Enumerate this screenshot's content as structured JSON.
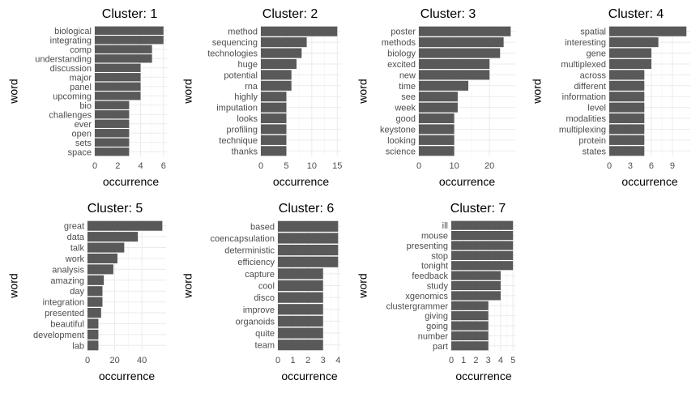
{
  "chart_data": [
    {
      "type": "bar",
      "orientation": "horizontal",
      "title": "Cluster: 1",
      "xlabel": "occurrence",
      "ylabel": "word",
      "categories": [
        "biological",
        "integrating",
        "comp",
        "understanding",
        "discussion",
        "major",
        "panel",
        "upcoming",
        "bio",
        "challenges",
        "ever",
        "open",
        "sets",
        "space"
      ],
      "values": [
        6,
        6,
        5,
        5,
        4,
        4,
        4,
        4,
        3,
        3,
        3,
        3,
        3,
        3
      ],
      "xlim": [
        0,
        6.3
      ],
      "xticks": [
        0,
        2,
        4,
        6
      ],
      "grid": true
    },
    {
      "type": "bar",
      "orientation": "horizontal",
      "title": "Cluster: 2",
      "xlabel": "occurrence",
      "ylabel": "word",
      "categories": [
        "method",
        "sequencing",
        "technologies",
        "huge",
        "potential",
        "rna",
        "highly",
        "imputation",
        "looks",
        "profiling",
        "technique",
        "thanks"
      ],
      "values": [
        15,
        9,
        8,
        7,
        6,
        6,
        5,
        5,
        5,
        5,
        5,
        5
      ],
      "xlim": [
        0,
        15.75
      ],
      "xticks": [
        0,
        5,
        10,
        15
      ],
      "grid": true
    },
    {
      "type": "bar",
      "orientation": "horizontal",
      "title": "Cluster: 3",
      "xlabel": "occurrence",
      "ylabel": "word",
      "categories": [
        "poster",
        "methods",
        "biology",
        "excited",
        "new",
        "time",
        "see",
        "week",
        "good",
        "keystone",
        "looking",
        "science"
      ],
      "values": [
        26,
        24,
        23,
        20,
        20,
        14,
        11,
        11,
        10,
        10,
        10,
        10
      ],
      "xlim": [
        0,
        27.3
      ],
      "xticks": [
        0,
        10,
        20
      ],
      "grid": true
    },
    {
      "type": "bar",
      "orientation": "horizontal",
      "title": "Cluster: 4",
      "xlabel": "occurrence",
      "ylabel": "word",
      "categories": [
        "spatial",
        "interesting",
        "gene",
        "multiplexed",
        "across",
        "different",
        "information",
        "level",
        "modalities",
        "multiplexing",
        "protein",
        "states"
      ],
      "values": [
        11,
        7,
        6,
        6,
        5,
        5,
        5,
        5,
        5,
        5,
        5,
        5
      ],
      "xlim": [
        0,
        11.55
      ],
      "xticks": [
        0,
        3,
        6,
        9
      ],
      "grid": true
    },
    {
      "type": "bar",
      "orientation": "horizontal",
      "title": "Cluster: 5",
      "xlabel": "occurrence",
      "ylabel": "word",
      "categories": [
        "great",
        "data",
        "talk",
        "work",
        "analysis",
        "amazing",
        "day",
        "integration",
        "presented",
        "beautiful",
        "development",
        "lab"
      ],
      "values": [
        55,
        37,
        27,
        22,
        19,
        12,
        11,
        11,
        10,
        8,
        8,
        8
      ],
      "xlim": [
        0,
        57.75
      ],
      "xticks": [
        0,
        20,
        40
      ],
      "grid": true
    },
    {
      "type": "bar",
      "orientation": "horizontal",
      "title": "Cluster: 6",
      "xlabel": "occurrence",
      "ylabel": "word",
      "categories": [
        "based",
        "coencapsulation",
        "deterministic",
        "efficiency",
        "capture",
        "cool",
        "disco",
        "improve",
        "organoids",
        "quite",
        "team"
      ],
      "values": [
        4,
        4,
        4,
        4,
        3,
        3,
        3,
        3,
        3,
        3,
        3
      ],
      "xlim": [
        0,
        4.2
      ],
      "xticks": [
        0,
        1,
        2,
        3,
        4
      ],
      "grid": true
    },
    {
      "type": "bar",
      "orientation": "horizontal",
      "title": "Cluster: 7",
      "xlabel": "occurrence",
      "ylabel": "word",
      "categories": [
        "ill",
        "mouse",
        "presenting",
        "stop",
        "tonight",
        "feedback",
        "study",
        "xgenomics",
        "clustergrammer",
        "giving",
        "going",
        "number",
        "part"
      ],
      "values": [
        5,
        5,
        5,
        5,
        5,
        4,
        4,
        4,
        3,
        3,
        3,
        3,
        3
      ],
      "xlim": [
        0,
        5.25
      ],
      "xticks": [
        0,
        1,
        2,
        3,
        4,
        5
      ],
      "grid": true
    }
  ],
  "colors": {
    "bar": "#595959",
    "grid_major": "#ebebeb",
    "grid_minor": "#f5f5f5"
  }
}
